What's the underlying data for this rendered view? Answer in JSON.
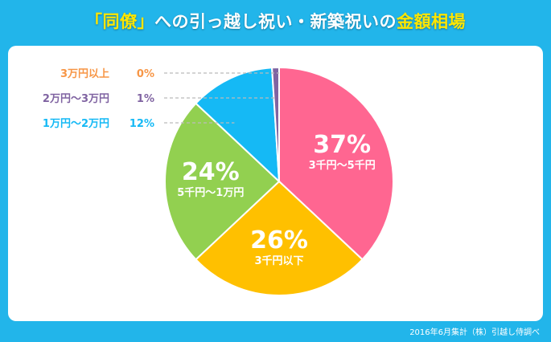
{
  "title": {
    "part1": "「同僚」",
    "part2": "への引っ越し祝い・新築祝いの",
    "part3": "金額相場"
  },
  "footer": "2016年6月集計（株）引越し侍調べ",
  "chart_data": {
    "type": "pie",
    "title": "「同僚」への引っ越し祝い・新築祝いの金額相場",
    "slices": [
      {
        "label": "3千円～5千円",
        "value": 37,
        "pct": "37%",
        "color": "#ff6691"
      },
      {
        "label": "3千円以下",
        "value": 26,
        "pct": "26%",
        "color": "#ffc000"
      },
      {
        "label": "5千円～1万円",
        "value": 24,
        "pct": "24%",
        "color": "#92d050"
      },
      {
        "label": "1万円～2万円",
        "value": 12,
        "pct": "12%",
        "color": "#15b9f5"
      },
      {
        "label": "2万円～3万円",
        "value": 1,
        "pct": "1%",
        "color": "#8064a2"
      },
      {
        "label": "3万円以上",
        "value": 0,
        "pct": "0%",
        "color": "#f79646"
      }
    ]
  }
}
